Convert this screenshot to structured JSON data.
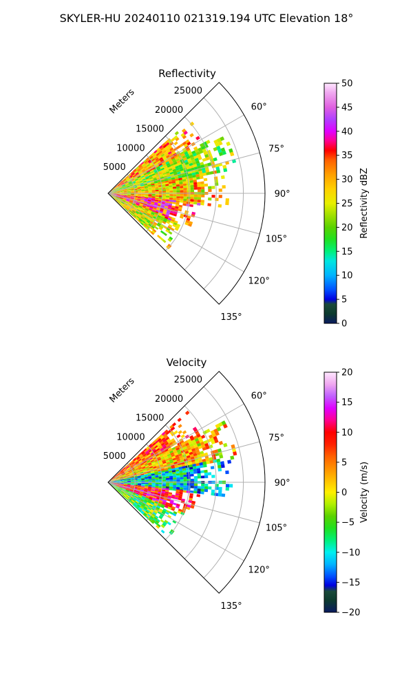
{
  "figure_title": "SKYLER-HU  20240110  021319.194 UTC Elevation 18°",
  "colors": {
    "background": "#ffffff",
    "grid": "#b0b0b0",
    "axis": "#000000"
  },
  "chart_data": [
    {
      "type": "polar-sector",
      "title": "Reflectivity",
      "radial_axis_label": "Meters",
      "radial_ticks": [
        5000,
        10000,
        15000,
        20000,
        25000
      ],
      "radial_tick_labels": [
        "5000",
        "10000",
        "15000",
        "20000",
        "25000"
      ],
      "rmax": 29000,
      "azimuth_range_deg": [
        45,
        135
      ],
      "azimuth_ticks_deg": [
        60,
        75,
        90,
        105,
        120,
        135
      ],
      "azimuth_tick_labels": [
        "60°",
        "75°",
        "90°",
        "105°",
        "120°",
        "135°"
      ],
      "colorbar": {
        "label": "Reflectivity dBZ",
        "range": [
          0,
          50
        ],
        "ticks": [
          0,
          5,
          10,
          15,
          20,
          25,
          30,
          35,
          40,
          45,
          50
        ],
        "tick_labels": [
          "0",
          "5",
          "10",
          "15",
          "20",
          "25",
          "30",
          "35",
          "40",
          "45",
          "50"
        ],
        "stops": [
          [
            0,
            "#0a1a60"
          ],
          [
            2,
            "#0d3b2e"
          ],
          [
            4,
            "#1a4a3a"
          ],
          [
            5,
            "#0000e0"
          ],
          [
            7,
            "#0050ff"
          ],
          [
            10,
            "#00b4ff"
          ],
          [
            13,
            "#00e6e0"
          ],
          [
            15,
            "#00f07a"
          ],
          [
            17.5,
            "#20e020"
          ],
          [
            20,
            "#5ad200"
          ],
          [
            22.5,
            "#a0e000"
          ],
          [
            25,
            "#e8f000"
          ],
          [
            28,
            "#ffd000"
          ],
          [
            31,
            "#ffa000"
          ],
          [
            34,
            "#ff6000"
          ],
          [
            36,
            "#ff0000"
          ],
          [
            38,
            "#ff0090"
          ],
          [
            40,
            "#e000ff"
          ],
          [
            42.5,
            "#b040ff"
          ],
          [
            45,
            "#e060e0"
          ],
          [
            48,
            "#f0a8f0"
          ],
          [
            50,
            "#ffe8ff"
          ]
        ]
      },
      "echo_summary": [
        {
          "azimuth_deg": [
            48,
            62
          ],
          "range_m": [
            0,
            20000
          ],
          "level": 30
        },
        {
          "azimuth_deg": [
            62,
            78
          ],
          "range_m": [
            0,
            25000
          ],
          "level": 22
        },
        {
          "azimuth_deg": [
            78,
            96
          ],
          "range_m": [
            0,
            23000
          ],
          "level": 28
        },
        {
          "azimuth_deg": [
            96,
            112
          ],
          "range_m": [
            0,
            17000
          ],
          "level": 36
        },
        {
          "azimuth_deg": [
            112,
            132
          ],
          "range_m": [
            0,
            15000
          ],
          "level": 25
        }
      ]
    },
    {
      "type": "polar-sector",
      "title": "Velocity",
      "radial_axis_label": "Meters",
      "radial_ticks": [
        5000,
        10000,
        15000,
        20000,
        25000
      ],
      "radial_tick_labels": [
        "5000",
        "10000",
        "15000",
        "20000",
        "25000"
      ],
      "rmax": 29000,
      "azimuth_range_deg": [
        45,
        135
      ],
      "azimuth_ticks_deg": [
        60,
        75,
        90,
        105,
        120,
        135
      ],
      "azimuth_tick_labels": [
        "60°",
        "75°",
        "90°",
        "105°",
        "120°",
        "135°"
      ],
      "colorbar": {
        "label": "Velocity (m/s)",
        "range": [
          -20,
          20
        ],
        "ticks": [
          -20,
          -15,
          -10,
          -5,
          0,
          5,
          10,
          15,
          20
        ],
        "tick_labels": [
          "−20",
          "−15",
          "−10",
          "−5",
          "0",
          "5",
          "10",
          "15",
          "20"
        ],
        "stops": [
          [
            -20,
            "#0a1a60"
          ],
          [
            -18,
            "#0d3b2e"
          ],
          [
            -16.5,
            "#1a4a3a"
          ],
          [
            -15.5,
            "#0000e0"
          ],
          [
            -14,
            "#0050ff"
          ],
          [
            -12,
            "#00b4ff"
          ],
          [
            -10,
            "#00f0f0"
          ],
          [
            -8,
            "#00f07a"
          ],
          [
            -6,
            "#20e020"
          ],
          [
            -4,
            "#5ad200"
          ],
          [
            -2,
            "#b0f000"
          ],
          [
            0,
            "#fff000"
          ],
          [
            2,
            "#ffc000"
          ],
          [
            4,
            "#ff9000"
          ],
          [
            6,
            "#ff6000"
          ],
          [
            8,
            "#ff2000"
          ],
          [
            10,
            "#ff0000"
          ],
          [
            12,
            "#ff0090"
          ],
          [
            14,
            "#e000ff"
          ],
          [
            16,
            "#c060ff"
          ],
          [
            18,
            "#f0a8f0"
          ],
          [
            20,
            "#ffe8ff"
          ]
        ]
      },
      "echo_summary": [
        {
          "azimuth_deg": [
            48,
            62
          ],
          "range_m": [
            0,
            20000
          ],
          "level": 6
        },
        {
          "azimuth_deg": [
            62,
            78
          ],
          "range_m": [
            0,
            25000
          ],
          "level": 2
        },
        {
          "azimuth_deg": [
            78,
            96
          ],
          "range_m": [
            0,
            23000
          ],
          "level": -10
        },
        {
          "azimuth_deg": [
            96,
            112
          ],
          "range_m": [
            0,
            17000
          ],
          "level": 9
        },
        {
          "azimuth_deg": [
            112,
            132
          ],
          "range_m": [
            0,
            15000
          ],
          "level": -5
        }
      ]
    }
  ]
}
